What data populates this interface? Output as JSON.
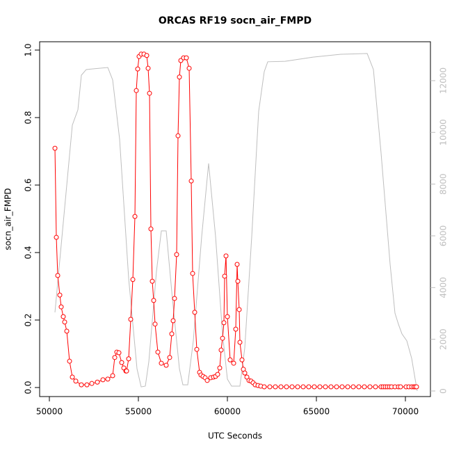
{
  "chart_data": {
    "type": "line",
    "title": "ORCAS RF19 socn_air_FMPD",
    "xlabel": "UTC Seconds",
    "ylabel": "socn_air_FMPD",
    "xlim": [
      49453,
      71406
    ],
    "ylim": [
      -0.0268,
      1.0247
    ],
    "y2lim": [
      -215,
      13505
    ],
    "xticks": [
      50000,
      55000,
      60000,
      65000,
      70000
    ],
    "yticks": [
      {
        "value": 0,
        "label": "0.0"
      },
      0.2,
      0.4,
      0.6,
      0.8,
      {
        "value": 1,
        "label": "1.0"
      }
    ],
    "y2ticks": [
      0,
      2000,
      4000,
      6000,
      8000,
      10000,
      12000
    ],
    "y2color": "#bebebe",
    "series": [
      {
        "color": "#ff0000",
        "markers": true,
        "x": [
          50313,
          50391,
          50469,
          50586,
          50664,
          50781,
          50859,
          50977,
          51133,
          51289,
          51484,
          51797,
          52109,
          52383,
          52695,
          53008,
          53281,
          53555,
          53672,
          53789,
          53906,
          54063,
          54180,
          54297,
          54336,
          54453,
          54570,
          54688,
          54805,
          54883,
          54961,
          55039,
          55156,
          55313,
          55469,
          55547,
          55625,
          55703,
          55781,
          55859,
          55938,
          56094,
          56289,
          56563,
          56758,
          56875,
          56953,
          57031,
          57148,
          57227,
          57305,
          57383,
          57539,
          57695,
          57852,
          57969,
          58047,
          58164,
          58281,
          58438,
          58516,
          58633,
          58750,
          58867,
          59063,
          59219,
          59336,
          59453,
          59570,
          59648,
          59727,
          59805,
          59844,
          59922,
          60000,
          60156,
          60352,
          60469,
          60547,
          60586,
          60664,
          60703,
          60820,
          60898,
          60977,
          61094,
          61211,
          61328,
          61445,
          61563,
          61719,
          61875,
          62070,
          62383,
          62695,
          63008,
          63320,
          63633,
          63945,
          64258,
          64570,
          64883,
          65195,
          65508,
          65820,
          66133,
          66445,
          66758,
          67070,
          67383,
          67695,
          68008,
          68320,
          68633,
          68750,
          68867,
          68984,
          69102,
          69219,
          69414,
          69609,
          69727,
          70039,
          70195,
          70352,
          70469,
          70547,
          70625
        ],
        "values": [
          0.709,
          0.445,
          0.332,
          0.274,
          0.239,
          0.21,
          0.194,
          0.167,
          0.078,
          0.031,
          0.019,
          0.008,
          0.008,
          0.012,
          0.016,
          0.023,
          0.025,
          0.035,
          0.089,
          0.105,
          0.103,
          0.074,
          0.058,
          0.049,
          0.049,
          0.085,
          0.202,
          0.32,
          0.507,
          0.88,
          0.944,
          0.981,
          0.988,
          0.988,
          0.984,
          0.946,
          0.872,
          0.47,
          0.315,
          0.258,
          0.188,
          0.105,
          0.072,
          0.066,
          0.089,
          0.159,
          0.198,
          0.264,
          0.394,
          0.746,
          0.92,
          0.969,
          0.977,
          0.977,
          0.946,
          0.612,
          0.338,
          0.223,
          0.113,
          0.045,
          0.037,
          0.033,
          0.029,
          0.021,
          0.029,
          0.031,
          0.033,
          0.039,
          0.058,
          0.111,
          0.146,
          0.192,
          0.33,
          0.39,
          0.21,
          0.082,
          0.072,
          0.173,
          0.365,
          0.315,
          0.231,
          0.134,
          0.082,
          0.054,
          0.043,
          0.031,
          0.021,
          0.019,
          0.014,
          0.008,
          0.006,
          0.004,
          0.002,
          0.002,
          0.002,
          0.002,
          0.002,
          0.002,
          0.002,
          0.002,
          0.002,
          0.002,
          0.002,
          0.002,
          0.002,
          0.002,
          0.002,
          0.002,
          0.002,
          0.002,
          0.002,
          0.002,
          0.002,
          0.002,
          0.002,
          0.002,
          0.002,
          0.002,
          0.002,
          0.002,
          0.002,
          0.002,
          0.002,
          0.002,
          0.002,
          0.002,
          0.002,
          0.002
        ]
      },
      {
        "color": "#bebebe",
        "axis": "y2",
        "markers": false,
        "x": [
          50313,
          51289,
          51602,
          51797,
          52070,
          53281,
          53555,
          53945,
          54453,
          54922,
          55156,
          55391,
          55586,
          56016,
          56289,
          56563,
          56914,
          57305,
          57500,
          57773,
          58086,
          58555,
          58945,
          59336,
          59727,
          60000,
          60234,
          60703,
          60977,
          61367,
          61758,
          62070,
          62266,
          63242,
          64805,
          66367,
          67852,
          68203,
          68633,
          69141,
          69414,
          69609,
          69805,
          70078,
          70352,
          70547,
          70664
        ],
        "values": [
          3040,
          10280,
          10870,
          12210,
          12430,
          12510,
          12030,
          9740,
          4360,
          860,
          160,
          190,
          1130,
          4630,
          6190,
          6190,
          3550,
          860,
          240,
          240,
          1940,
          5970,
          8800,
          5970,
          2210,
          460,
          190,
          190,
          1670,
          5970,
          10820,
          12350,
          12730,
          12750,
          12910,
          13020,
          13050,
          12430,
          9200,
          4900,
          3010,
          2580,
          2210,
          1940,
          1260,
          460,
          0
        ]
      }
    ]
  }
}
